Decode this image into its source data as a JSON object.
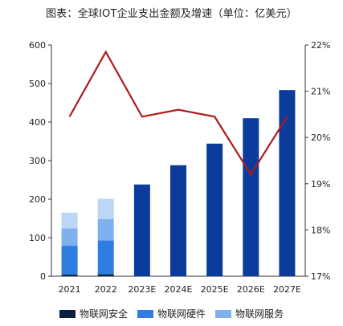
{
  "chart_data": {
    "type": "bar",
    "title": "图表：全球IOT企业支出金额及增速（单位：亿美元）",
    "categories": [
      "2021",
      "2022",
      "2023E",
      "2024E",
      "2025E",
      "2026E",
      "2027E"
    ],
    "ylim": [
      0,
      600
    ],
    "y_ticks": [
      "0",
      "100",
      "200",
      "300",
      "400",
      "500",
      "600"
    ],
    "y2lim": [
      17,
      22
    ],
    "y2_ticks": [
      "17%",
      "18%",
      "19%",
      "20%",
      "21%",
      "22%"
    ],
    "stacked_series": [
      {
        "name": "物联网安全",
        "color": "#0a1f44",
        "values": [
          4,
          5
        ]
      },
      {
        "name": "物联网硬件",
        "color": "#2f7de1",
        "values": [
          75,
          88
        ]
      },
      {
        "name": "物联网服务",
        "color": "#7fb0ef",
        "values": [
          45,
          55
        ]
      }
    ],
    "faded_segment": {
      "color": "#bcd6f7",
      "values": [
        41,
        53
      ]
    },
    "total_bars": {
      "color": "#0b3c9c",
      "values": [
        null,
        null,
        238,
        288,
        344,
        410,
        483
      ]
    },
    "growth_line": {
      "color": "#b01919",
      "values": [
        20.45,
        21.85,
        20.45,
        20.6,
        20.45,
        19.2,
        20.45
      ]
    },
    "legend": [
      {
        "label": "物联网安全",
        "color": "#0a1f44"
      },
      {
        "label": "物联网硬件",
        "color": "#2f7de1"
      },
      {
        "label": "物联网服务",
        "color": "#7fb0ef"
      }
    ],
    "grid": false
  }
}
